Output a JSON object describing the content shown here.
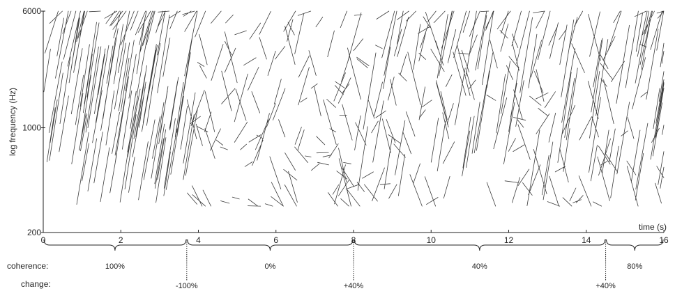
{
  "chart_data": {
    "type": "line",
    "title": "",
    "xlabel": "time (s)",
    "ylabel": "log frequency (Hz)",
    "xlim": [
      0,
      16
    ],
    "ylim": [
      200,
      6000
    ],
    "y_scale": "log",
    "x_ticks": [
      0,
      2,
      4,
      6,
      8,
      10,
      12,
      14,
      16
    ],
    "y_ticks": [
      200,
      1000,
      6000
    ],
    "stimulus_freq_range": [
      300,
      6000
    ],
    "tone_duration_s": 0.25,
    "segments": [
      {
        "start": 0,
        "end": 3.7,
        "coherence": "100%"
      },
      {
        "start": 3.7,
        "end": 8,
        "coherence": "0%"
      },
      {
        "start": 8,
        "end": 14.5,
        "coherence": "40%"
      },
      {
        "start": 14.5,
        "end": 16,
        "coherence": "80%"
      }
    ],
    "changes": [
      {
        "time": 3.7,
        "label": "-100%"
      },
      {
        "time": 8,
        "label": "+40%"
      },
      {
        "time": 14.5,
        "label": "+40%"
      }
    ],
    "row_labels": {
      "coherence": "coherence:",
      "change": "change:"
    },
    "colors": {
      "tones": "#3a3a3a",
      "axis": "#222222"
    }
  }
}
